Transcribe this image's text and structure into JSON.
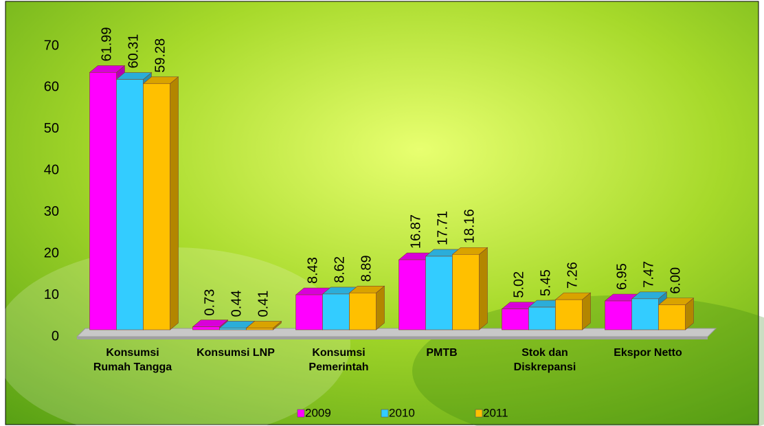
{
  "chart_data": {
    "type": "bar3d",
    "categories": [
      "Konsumsi Rumah Tangga",
      "Konsumsi LNP",
      "Konsumsi Pemerintah",
      "PMTB",
      "Stok dan Diskrepansi",
      "Ekspor Netto"
    ],
    "series": [
      {
        "name": "2009",
        "color": "#ff00ff",
        "values": [
          61.99,
          0.73,
          8.43,
          16.87,
          5.02,
          6.95
        ],
        "value_labels": [
          "61.99",
          "0.73",
          "8.43",
          "16.87",
          "5.02",
          "6.95"
        ]
      },
      {
        "name": "2010",
        "color": "#33ccff",
        "values": [
          60.31,
          0.44,
          8.62,
          17.71,
          5.45,
          7.47
        ],
        "value_labels": [
          "60.31",
          "0.44",
          "8.62",
          "17.71",
          "5.45",
          "7.47"
        ]
      },
      {
        "name": "2011",
        "color": "#ffc000",
        "values": [
          59.28,
          0.41,
          8.89,
          18.16,
          7.26,
          6.0
        ],
        "value_labels": [
          "59.28",
          "0.41",
          "8.89",
          "18.16",
          "7.26",
          "6.00"
        ]
      }
    ],
    "ylim": [
      0,
      70
    ],
    "yticks": [
      0,
      10,
      20,
      30,
      40,
      50,
      60,
      70
    ],
    "legend": "bottom"
  }
}
